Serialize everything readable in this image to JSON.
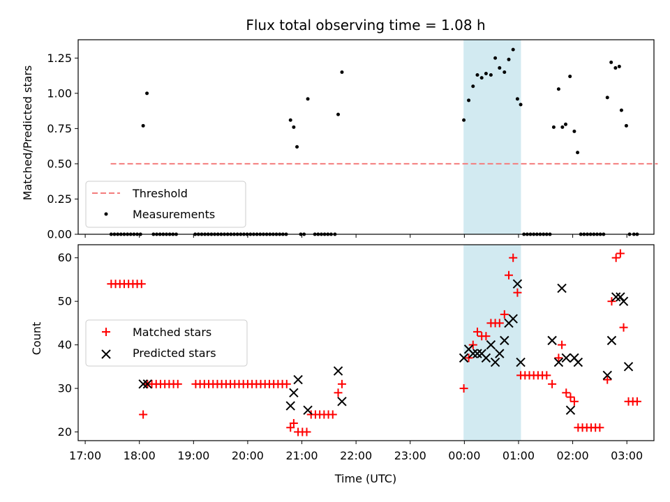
{
  "chart_data": {
    "title": "Flux total observing time = 1.08 h",
    "x_label": "Time (UTC)",
    "x_unit": "hours since 17:00 UTC",
    "x_ticks": [
      {
        "v": 0,
        "label": "17:00"
      },
      {
        "v": 1,
        "label": "18:00"
      },
      {
        "v": 2,
        "label": "19:00"
      },
      {
        "v": 3,
        "label": "20:00"
      },
      {
        "v": 4,
        "label": "21:00"
      },
      {
        "v": 5,
        "label": "22:00"
      },
      {
        "v": 6,
        "label": "23:00"
      },
      {
        "v": 7,
        "label": "00:00"
      },
      {
        "v": 8,
        "label": "01:00"
      },
      {
        "v": 9,
        "label": "02:00"
      },
      {
        "v": 10,
        "label": "03:00"
      }
    ],
    "x_range": [
      -0.13,
      10.5
    ],
    "highlight_span": {
      "x0": 6.985,
      "x1": 8.045,
      "color": "#add8e6"
    },
    "top": {
      "type": "scatter",
      "y_label": "Matched/Predicted stars",
      "y_range": [
        0.0,
        1.38
      ],
      "y_ticks": [
        {
          "v": 0.0,
          "label": "0.00"
        },
        {
          "v": 0.25,
          "label": "0.25"
        },
        {
          "v": 0.5,
          "label": "0.50"
        },
        {
          "v": 0.75,
          "label": "0.75"
        },
        {
          "v": 1.0,
          "label": "1.00"
        },
        {
          "v": 1.25,
          "label": "1.25"
        }
      ],
      "threshold": {
        "name": "Threshold",
        "y": 0.5,
        "x0": 0.47,
        "x1": 10.57,
        "color": "#f47c7c"
      },
      "measurements": {
        "name": "Measurements",
        "color": "#000000",
        "points": [
          [
            0.48,
            0
          ],
          [
            0.54,
            0
          ],
          [
            0.6,
            0
          ],
          [
            0.66,
            0
          ],
          [
            0.72,
            0
          ],
          [
            0.78,
            0
          ],
          [
            0.84,
            0
          ],
          [
            0.9,
            0
          ],
          [
            0.96,
            0
          ],
          [
            1.02,
            0
          ],
          [
            1.07,
            0.77
          ],
          [
            1.14,
            1.0
          ],
          [
            1.26,
            0
          ],
          [
            1.32,
            0
          ],
          [
            1.38,
            0
          ],
          [
            1.44,
            0
          ],
          [
            1.5,
            0
          ],
          [
            1.56,
            0
          ],
          [
            1.62,
            0
          ],
          [
            1.68,
            0
          ],
          [
            2.03,
            0
          ],
          [
            2.09,
            0
          ],
          [
            2.15,
            0
          ],
          [
            2.21,
            0
          ],
          [
            2.27,
            0
          ],
          [
            2.33,
            0
          ],
          [
            2.39,
            0
          ],
          [
            2.45,
            0
          ],
          [
            2.51,
            0
          ],
          [
            2.57,
            0
          ],
          [
            2.63,
            0
          ],
          [
            2.69,
            0
          ],
          [
            2.75,
            0
          ],
          [
            2.81,
            0
          ],
          [
            2.87,
            0
          ],
          [
            2.93,
            0
          ],
          [
            2.99,
            0
          ],
          [
            3.05,
            0
          ],
          [
            3.11,
            0
          ],
          [
            3.17,
            0
          ],
          [
            3.23,
            0
          ],
          [
            3.29,
            0
          ],
          [
            3.35,
            0
          ],
          [
            3.41,
            0
          ],
          [
            3.47,
            0
          ],
          [
            3.53,
            0
          ],
          [
            3.59,
            0
          ],
          [
            3.65,
            0
          ],
          [
            3.71,
            0
          ],
          [
            3.79,
            0.81
          ],
          [
            3.85,
            0.76
          ],
          [
            3.91,
            0.62
          ],
          [
            3.98,
            0
          ],
          [
            4.04,
            0
          ],
          [
            4.11,
            0.96
          ],
          [
            4.24,
            0
          ],
          [
            4.3,
            0
          ],
          [
            4.36,
            0
          ],
          [
            4.42,
            0
          ],
          [
            4.48,
            0
          ],
          [
            4.54,
            0
          ],
          [
            4.61,
            0
          ],
          [
            4.67,
            0.85
          ],
          [
            4.74,
            1.15
          ],
          [
            6.99,
            0.81
          ],
          [
            7.08,
            0.95
          ],
          [
            7.16,
            1.05
          ],
          [
            7.24,
            1.13
          ],
          [
            7.32,
            1.11
          ],
          [
            7.4,
            1.14
          ],
          [
            7.49,
            1.13
          ],
          [
            7.57,
            1.25
          ],
          [
            7.65,
            1.18
          ],
          [
            7.74,
            1.15
          ],
          [
            7.82,
            1.24
          ],
          [
            7.9,
            1.31
          ],
          [
            7.98,
            0.96
          ],
          [
            8.04,
            0.92
          ],
          [
            8.1,
            0
          ],
          [
            8.16,
            0
          ],
          [
            8.22,
            0
          ],
          [
            8.28,
            0
          ],
          [
            8.34,
            0
          ],
          [
            8.4,
            0
          ],
          [
            8.46,
            0
          ],
          [
            8.52,
            0
          ],
          [
            8.58,
            0
          ],
          [
            8.65,
            0.76
          ],
          [
            8.74,
            1.03
          ],
          [
            8.81,
            0.76
          ],
          [
            8.87,
            0.78
          ],
          [
            8.95,
            1.12
          ],
          [
            9.03,
            0.73
          ],
          [
            9.09,
            0.58
          ],
          [
            9.15,
            0
          ],
          [
            9.21,
            0
          ],
          [
            9.27,
            0
          ],
          [
            9.33,
            0
          ],
          [
            9.39,
            0
          ],
          [
            9.45,
            0
          ],
          [
            9.51,
            0
          ],
          [
            9.57,
            0
          ],
          [
            9.64,
            0.97
          ],
          [
            9.71,
            1.22
          ],
          [
            9.79,
            1.18
          ],
          [
            9.86,
            1.19
          ],
          [
            9.9,
            0.88
          ],
          [
            9.99,
            0.77
          ],
          [
            10.05,
            0
          ],
          [
            10.13,
            0
          ],
          [
            10.19,
            0
          ]
        ]
      }
    },
    "bottom": {
      "type": "scatter",
      "y_label": "Count",
      "y_range": [
        18.0,
        63.0
      ],
      "y_ticks": [
        {
          "v": 20,
          "label": "20"
        },
        {
          "v": 30,
          "label": "30"
        },
        {
          "v": 40,
          "label": "40"
        },
        {
          "v": 50,
          "label": "50"
        },
        {
          "v": 60,
          "label": "60"
        }
      ],
      "matched": {
        "name": "Matched stars",
        "color": "#ff0000",
        "points": [
          [
            0.48,
            54
          ],
          [
            0.56,
            54
          ],
          [
            0.64,
            54
          ],
          [
            0.72,
            54
          ],
          [
            0.8,
            54
          ],
          [
            0.88,
            54
          ],
          [
            0.96,
            54
          ],
          [
            1.04,
            54
          ],
          [
            1.07,
            24
          ],
          [
            1.15,
            31
          ],
          [
            1.23,
            31
          ],
          [
            1.31,
            31
          ],
          [
            1.39,
            31
          ],
          [
            1.47,
            31
          ],
          [
            1.55,
            31
          ],
          [
            1.63,
            31
          ],
          [
            1.71,
            31
          ],
          [
            2.04,
            31
          ],
          [
            2.12,
            31
          ],
          [
            2.2,
            31
          ],
          [
            2.28,
            31
          ],
          [
            2.36,
            31
          ],
          [
            2.44,
            31
          ],
          [
            2.52,
            31
          ],
          [
            2.6,
            31
          ],
          [
            2.68,
            31
          ],
          [
            2.76,
            31
          ],
          [
            2.84,
            31
          ],
          [
            2.92,
            31
          ],
          [
            3.0,
            31
          ],
          [
            3.08,
            31
          ],
          [
            3.16,
            31
          ],
          [
            3.24,
            31
          ],
          [
            3.32,
            31
          ],
          [
            3.4,
            31
          ],
          [
            3.48,
            31
          ],
          [
            3.56,
            31
          ],
          [
            3.64,
            31
          ],
          [
            3.72,
            31
          ],
          [
            3.79,
            21
          ],
          [
            3.85,
            22
          ],
          [
            3.93,
            20
          ],
          [
            4.01,
            20
          ],
          [
            4.09,
            20
          ],
          [
            4.17,
            24
          ],
          [
            4.25,
            24
          ],
          [
            4.33,
            24
          ],
          [
            4.41,
            24
          ],
          [
            4.49,
            24
          ],
          [
            4.57,
            24
          ],
          [
            4.67,
            29
          ],
          [
            4.74,
            31
          ],
          [
            6.99,
            30
          ],
          [
            7.08,
            37
          ],
          [
            7.16,
            40
          ],
          [
            7.24,
            43
          ],
          [
            7.32,
            42
          ],
          [
            7.4,
            42
          ],
          [
            7.49,
            45
          ],
          [
            7.57,
            45
          ],
          [
            7.65,
            45
          ],
          [
            7.74,
            47
          ],
          [
            7.82,
            56
          ],
          [
            7.9,
            60
          ],
          [
            7.98,
            52
          ],
          [
            8.04,
            33
          ],
          [
            8.12,
            33
          ],
          [
            8.2,
            33
          ],
          [
            8.28,
            33
          ],
          [
            8.36,
            33
          ],
          [
            8.44,
            33
          ],
          [
            8.52,
            33
          ],
          [
            8.62,
            31
          ],
          [
            8.74,
            37
          ],
          [
            8.8,
            40
          ],
          [
            8.88,
            29
          ],
          [
            8.96,
            28
          ],
          [
            9.03,
            27
          ],
          [
            9.1,
            21
          ],
          [
            9.18,
            21
          ],
          [
            9.26,
            21
          ],
          [
            9.34,
            21
          ],
          [
            9.42,
            21
          ],
          [
            9.5,
            21
          ],
          [
            9.64,
            32
          ],
          [
            9.72,
            50
          ],
          [
            9.8,
            60
          ],
          [
            9.88,
            61
          ],
          [
            9.94,
            44
          ],
          [
            10.03,
            27
          ],
          [
            10.11,
            27
          ],
          [
            10.19,
            27
          ]
        ]
      },
      "predicted": {
        "name": "Predicted stars",
        "color": "#000000",
        "points": [
          [
            1.07,
            31
          ],
          [
            1.15,
            31
          ],
          [
            3.79,
            26
          ],
          [
            3.85,
            29
          ],
          [
            3.93,
            32
          ],
          [
            4.11,
            25
          ],
          [
            4.67,
            34
          ],
          [
            4.74,
            27
          ],
          [
            6.99,
            37
          ],
          [
            7.08,
            39
          ],
          [
            7.16,
            38
          ],
          [
            7.24,
            38
          ],
          [
            7.32,
            38
          ],
          [
            7.4,
            37
          ],
          [
            7.49,
            40
          ],
          [
            7.57,
            36
          ],
          [
            7.65,
            38
          ],
          [
            7.74,
            41
          ],
          [
            7.82,
            45
          ],
          [
            7.9,
            46
          ],
          [
            7.98,
            54
          ],
          [
            8.04,
            36
          ],
          [
            8.62,
            41
          ],
          [
            8.74,
            36
          ],
          [
            8.8,
            53
          ],
          [
            8.88,
            37
          ],
          [
            8.96,
            25
          ],
          [
            9.03,
            37
          ],
          [
            9.1,
            36
          ],
          [
            9.64,
            33
          ],
          [
            9.72,
            41
          ],
          [
            9.8,
            51
          ],
          [
            9.88,
            51
          ],
          [
            9.94,
            50
          ],
          [
            10.03,
            35
          ]
        ]
      }
    }
  }
}
